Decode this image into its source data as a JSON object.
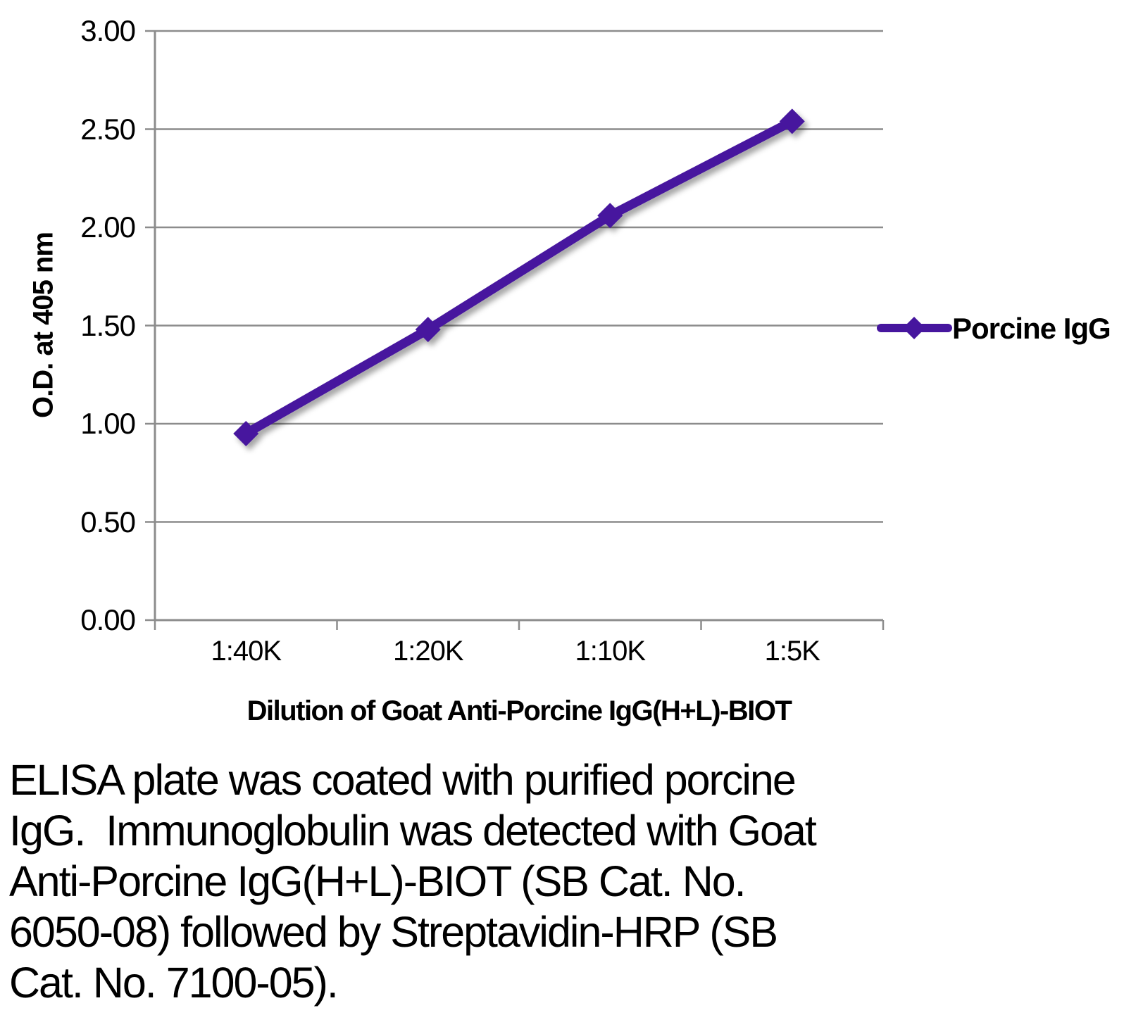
{
  "chart_data": {
    "type": "line",
    "categories": [
      "1:40K",
      "1:20K",
      "1:10K",
      "1:5K"
    ],
    "series": [
      {
        "name": "Porcine IgG",
        "values": [
          0.95,
          1.48,
          2.06,
          2.54
        ],
        "color": "#46169E",
        "marker": "diamond"
      }
    ],
    "xlabel": "Dilution of Goat Anti-Porcine IgG(H+L)-BIOT",
    "ylabel": "O.D. at 405 nm",
    "ylim": [
      0,
      3.0
    ],
    "ytick_step": 0.5,
    "ytick_labels": [
      "0.00",
      "0.50",
      "1.00",
      "1.50",
      "2.00",
      "2.50",
      "3.00"
    ],
    "grid": true,
    "legend_position": "right"
  },
  "colors": {
    "background": "#FFFFFF",
    "text": "#000000",
    "grid": "#8C8C8C",
    "axis": "#8C8C8C"
  },
  "caption": {
    "lines": [
      "ELISA plate was coated with purified porcine",
      "IgG.  Immunoglobulin was detected with Goat",
      "Anti-Porcine IgG(H+L)-BIOT (SB Cat. No.",
      "6050-08) followed by Streptavidin-HRP (SB",
      "Cat. No. 7100-05)."
    ]
  }
}
